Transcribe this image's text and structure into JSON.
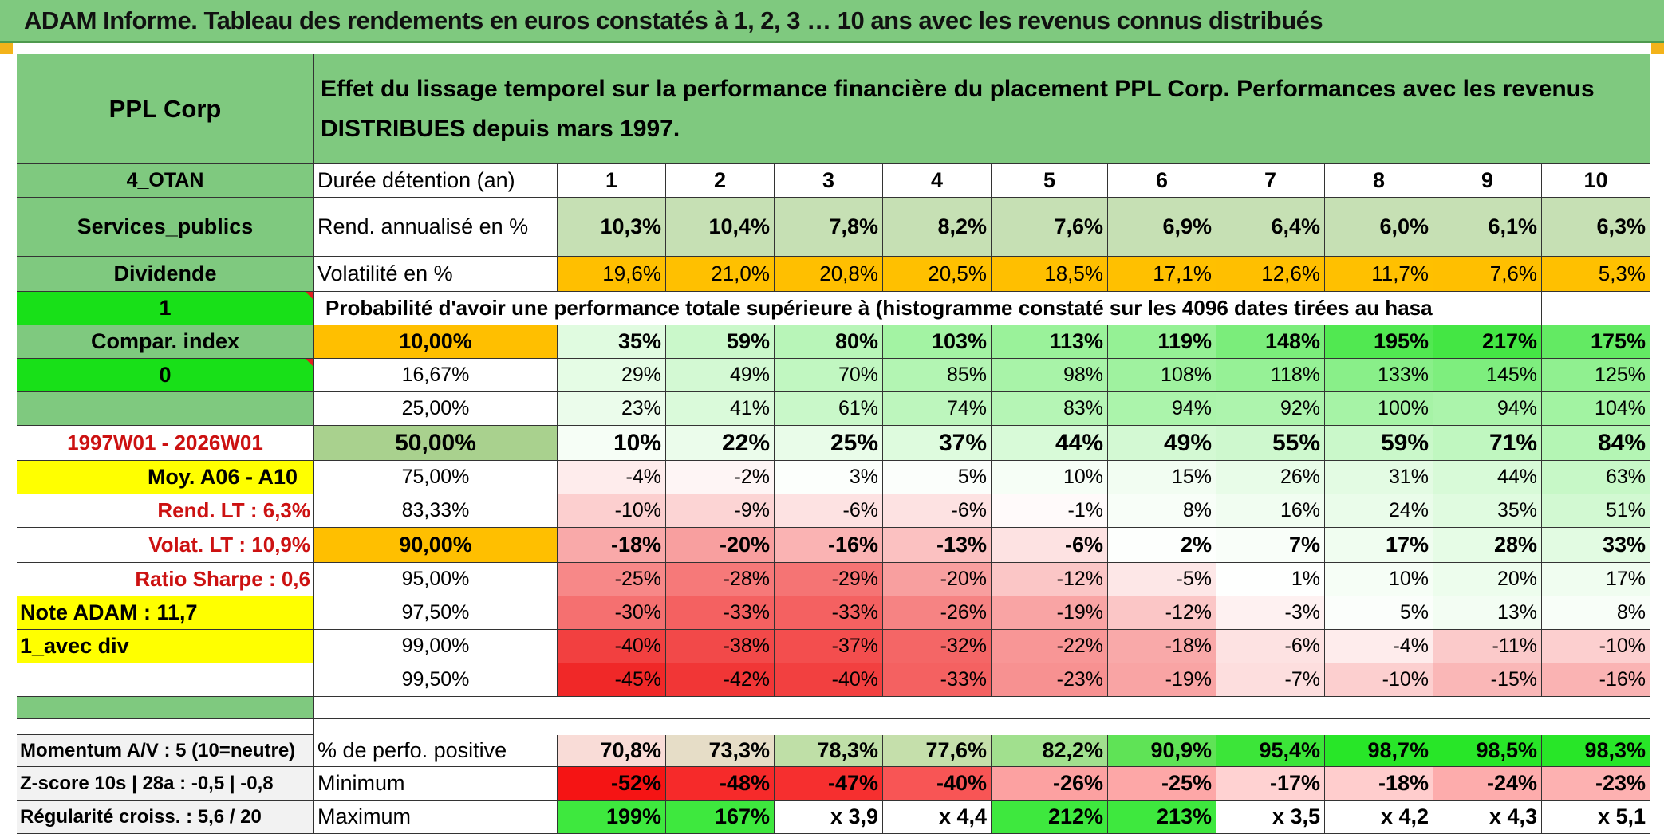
{
  "title": "ADAM Informe. Tableau des rendements en euros constatés à 1, 2, 3 … 10 ans avec les revenus connus distribués",
  "left": {
    "name": "PPL Corp",
    "region": "4_OTAN",
    "sector": "Services_publics",
    "type": "Dividende",
    "flag1": "1",
    "compar": "Compar. index",
    "flag2": "0",
    "period": "1997W01 - 2026W01",
    "moy": "Moy. A06 - A10",
    "rend_lt": "Rend. LT :   6,3%",
    "volat_lt": "Volat. LT :   10,9%",
    "sharpe": "Ratio Sharpe :    0,6",
    "note": "Note ADAM : 11,7",
    "variant": "1_avec div",
    "momentum": "Momentum A/V : 5 (10=neutre)",
    "zscore": "Z-score 10s | 28a : -0,5 | -0,8",
    "regularite": "Régularité croiss. : 5,6 / 20"
  },
  "header": {
    "desc": "Effet du lissage temporel sur la performance financière du placement PPL Corp. Performances avec les revenus DISTRIBUES depuis mars 1997.",
    "duree_label": "Durée détention (an)",
    "years": [
      "1",
      "2",
      "3",
      "4",
      "5",
      "6",
      "7",
      "8",
      "9",
      "10"
    ],
    "rend_label": "Rend. annualisé en %",
    "rend": [
      "10,3%",
      "10,4%",
      "7,8%",
      "8,2%",
      "7,6%",
      "6,9%",
      "6,4%",
      "6,0%",
      "6,1%",
      "6,3%"
    ],
    "vol_label": "Volatilité en %",
    "vol": [
      "19,6%",
      "21,0%",
      "20,8%",
      "20,5%",
      "18,5%",
      "17,1%",
      "12,6%",
      "11,7%",
      "7,6%",
      "5,3%"
    ],
    "prob_label": "Probabilité d'avoir une performance totale supérieure à (histogramme constaté sur les 4096 dates tirées au hasard)"
  },
  "quantiles": [
    {
      "p": "10,00%",
      "v": [
        "35%",
        "59%",
        "80%",
        "103%",
        "113%",
        "119%",
        "148%",
        "195%",
        "217%",
        "175%"
      ]
    },
    {
      "p": "16,67%",
      "v": [
        "29%",
        "49%",
        "70%",
        "85%",
        "98%",
        "108%",
        "118%",
        "133%",
        "145%",
        "125%"
      ]
    },
    {
      "p": "25,00%",
      "v": [
        "23%",
        "41%",
        "61%",
        "74%",
        "83%",
        "94%",
        "92%",
        "100%",
        "94%",
        "104%"
      ]
    },
    {
      "p": "50,00%",
      "v": [
        "10%",
        "22%",
        "25%",
        "37%",
        "44%",
        "49%",
        "55%",
        "59%",
        "71%",
        "84%"
      ]
    },
    {
      "p": "75,00%",
      "v": [
        "-4%",
        "-2%",
        "3%",
        "5%",
        "10%",
        "15%",
        "26%",
        "31%",
        "44%",
        "63%"
      ]
    },
    {
      "p": "83,33%",
      "v": [
        "-10%",
        "-9%",
        "-6%",
        "-6%",
        "-1%",
        "8%",
        "16%",
        "24%",
        "35%",
        "51%"
      ]
    },
    {
      "p": "90,00%",
      "v": [
        "-18%",
        "-20%",
        "-16%",
        "-13%",
        "-6%",
        "2%",
        "7%",
        "17%",
        "28%",
        "33%"
      ]
    },
    {
      "p": "95,00%",
      "v": [
        "-25%",
        "-28%",
        "-29%",
        "-20%",
        "-12%",
        "-5%",
        "1%",
        "10%",
        "20%",
        "17%"
      ]
    },
    {
      "p": "97,50%",
      "v": [
        "-30%",
        "-33%",
        "-33%",
        "-26%",
        "-19%",
        "-12%",
        "-3%",
        "5%",
        "13%",
        "8%"
      ]
    },
    {
      "p": "99,00%",
      "v": [
        "-40%",
        "-38%",
        "-37%",
        "-32%",
        "-22%",
        "-18%",
        "-6%",
        "-4%",
        "-11%",
        "-10%"
      ]
    },
    {
      "p": "99,50%",
      "v": [
        "-45%",
        "-42%",
        "-40%",
        "-33%",
        "-23%",
        "-19%",
        "-7%",
        "-10%",
        "-15%",
        "-16%"
      ]
    }
  ],
  "bottom": {
    "pos_label": "% de perfo. positive",
    "pos": [
      "70,8%",
      "73,3%",
      "78,3%",
      "77,6%",
      "82,2%",
      "90,9%",
      "95,4%",
      "98,7%",
      "98,5%",
      "98,3%"
    ],
    "min_label": "Minimum",
    "min": [
      "-52%",
      "-48%",
      "-47%",
      "-40%",
      "-26%",
      "-25%",
      "-17%",
      "-18%",
      "-24%",
      "-23%"
    ],
    "max_label": "Maximum",
    "max": [
      "199%",
      "167%",
      "x 3,9",
      "x 4,4",
      "212%",
      "213%",
      "x 3,5",
      "x 4,2",
      "x 4,3",
      "x 5,1"
    ]
  },
  "colors": {
    "header_green": "#7fc97f",
    "bright_green": "#18e018",
    "yellow": "#ffff00",
    "orange": "#ffbf00",
    "red_text": "#cc1111"
  }
}
